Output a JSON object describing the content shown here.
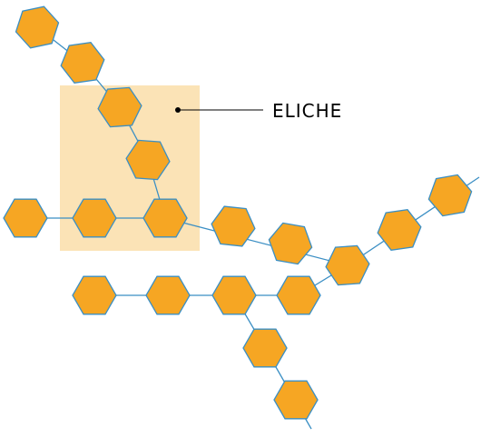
{
  "callout": {
    "label": "ELICHE"
  },
  "colors": {
    "hexagon_fill": "#F6A623",
    "hexagon_stroke": "#3B8FC4",
    "bond_line": "#3B8FC4",
    "highlight_box": "#FBE3B6",
    "leader_line": "#000000",
    "text": "#000000",
    "background": "#FFFFFF"
  },
  "structure": {
    "description_icon": "hexagon-glucose-unit-icon"
  }
}
